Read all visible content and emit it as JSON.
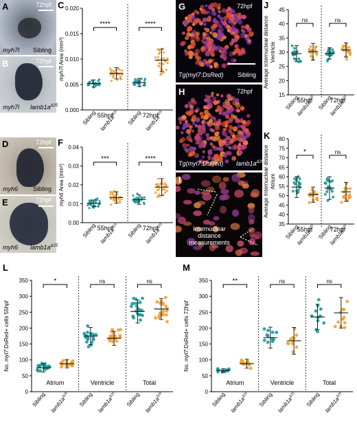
{
  "figure": {
    "panels": {
      "A": {
        "letter": "A",
        "time": "72hpf",
        "gene": "myh7l",
        "cond": "Sibling"
      },
      "B": {
        "letter": "B",
        "time": "72hpf",
        "gene": "myh7l",
        "cond": "lamb1a",
        "sup": "Δ25"
      },
      "D": {
        "letter": "D",
        "time": "72hpf",
        "gene": "myh6",
        "cond": "Sibling"
      },
      "E": {
        "letter": "E",
        "time": "72hpf",
        "gene": "myh6",
        "cond": "lamb1a",
        "sup": "Δ25"
      },
      "G": {
        "letter": "G",
        "time": "72hpf",
        "label": "Tg(myl7:DsRed)",
        "cond": "Sibling"
      },
      "H": {
        "letter": "H",
        "time": "72hpf",
        "label": "Tg(myl7:DsRed)",
        "cond": "lamb1a",
        "sup": "Δ25"
      },
      "I": {
        "letter": "I",
        "note_line1": "Internuclear",
        "note_line2": "distance",
        "note_line3": "measurements"
      }
    }
  },
  "chart_data": [
    {
      "id": "C",
      "letter": "C",
      "type": "scatter",
      "ylabel_italic": "myh7l",
      "ylabel_rest": " Area (mm²)",
      "ylim": [
        0,
        0.02
      ],
      "yticks": [
        "0.000",
        "0.005",
        "0.010",
        "0.015",
        "0.020"
      ],
      "xticks": [
        "Sibling",
        "lamb1a",
        "Sibling",
        "lamb1a"
      ],
      "xsup": "Δ25",
      "groups": [
        "55hpf",
        "72hpf"
      ],
      "series": [
        {
          "name": "Sibling 55hpf",
          "mean": 0.0052,
          "sd": 0.0007,
          "color": "#1a9a9a"
        },
        {
          "name": "lamb1a 55hpf",
          "mean": 0.0072,
          "sd": 0.0011,
          "color": "#f0a030"
        },
        {
          "name": "Sibling 72hpf",
          "mean": 0.0054,
          "sd": 0.0008,
          "color": "#1a9a9a"
        },
        {
          "name": "lamb1a 72hpf",
          "mean": 0.0098,
          "sd": 0.0022,
          "color": "#f0a030"
        }
      ],
      "sig": [
        "****",
        "****"
      ]
    },
    {
      "id": "F",
      "letter": "F",
      "type": "scatter",
      "ylabel_italic": "myh6",
      "ylabel_rest": " Area (mm²)",
      "ylim": [
        0,
        0.04
      ],
      "yticks": [
        "0.00",
        "0.01",
        "0.02",
        "0.03",
        "0.04"
      ],
      "xticks": [
        "Sibling",
        "lamb1a",
        "Sibling",
        "lamb1a"
      ],
      "xsup": "Δ25",
      "groups": [
        "55hpf",
        "72hpf"
      ],
      "series": [
        {
          "name": "Sibling 55hpf",
          "mean": 0.0102,
          "sd": 0.0018,
          "color": "#1a9a9a"
        },
        {
          "name": "lamb1a 55hpf",
          "mean": 0.0133,
          "sd": 0.003,
          "color": "#f0a030"
        },
        {
          "name": "Sibling 72hpf",
          "mean": 0.0122,
          "sd": 0.0025,
          "color": "#1a9a9a"
        },
        {
          "name": "lamb1a 72hpf",
          "mean": 0.0188,
          "sd": 0.0045,
          "color": "#f0a030"
        }
      ],
      "sig": [
        "***",
        "****"
      ]
    },
    {
      "id": "J",
      "letter": "J",
      "type": "scatter",
      "ylabel_line1": "Average Internuclear distance",
      "ylabel_line2": "Ventricle",
      "ylim": [
        15,
        45
      ],
      "yticks": [
        "15",
        "20",
        "25",
        "30",
        "35",
        "40",
        "45"
      ],
      "xticks": [
        "Sibling",
        "lamb1a",
        "Sibling",
        "lamb1a"
      ],
      "xsup": "Δ25",
      "groups": [
        "55hpf",
        "72hpf"
      ],
      "series": [
        {
          "name": "Sibling 55hpf",
          "mean": 29.5,
          "sd": 2.8,
          "color": "#1a9a9a"
        },
        {
          "name": "lamb1a 55hpf",
          "mean": 30.2,
          "sd": 2.9,
          "color": "#f0a030"
        },
        {
          "name": "Sibling 72hpf",
          "mean": 29.6,
          "sd": 2.0,
          "color": "#1a9a9a"
        },
        {
          "name": "lamb1a 72hpf",
          "mean": 30.8,
          "sd": 2.5,
          "color": "#f0a030"
        }
      ],
      "sig": [
        "ns",
        "ns"
      ]
    },
    {
      "id": "K",
      "letter": "K",
      "type": "scatter",
      "ylabel_line1": "Average Internuclear distance",
      "ylabel_line2": "Atrium",
      "ylim": [
        35,
        80
      ],
      "yticks": [
        "35",
        "40",
        "45",
        "50",
        "55",
        "60",
        "65",
        "70",
        "75",
        "80"
      ],
      "xticks": [
        "Sibling",
        "lamb1a",
        "Sibling",
        "lamb1a"
      ],
      "xsup": "Δ25",
      "groups": [
        "55hpf",
        "72hpf"
      ],
      "series": [
        {
          "name": "Sibling 55hpf",
          "mean": 54.5,
          "sd": 5.5,
          "color": "#1a9a9a"
        },
        {
          "name": "lamb1a 55hpf",
          "mean": 50.5,
          "sd": 4.0,
          "color": "#f0a030"
        },
        {
          "name": "Sibling 72hpf",
          "mean": 54.0,
          "sd": 6.0,
          "color": "#1a9a9a"
        },
        {
          "name": "lamb1a 72hpf",
          "mean": 52.0,
          "sd": 5.0,
          "color": "#f0a030"
        }
      ],
      "sig": [
        "*",
        "ns"
      ]
    },
    {
      "id": "L",
      "letter": "L",
      "type": "scatter",
      "ylabel_pre": "No. ",
      "ylabel_italic": "myl7",
      "ylabel_rest": ":DsRed+ cells 55hpf",
      "ylim": [
        0,
        350
      ],
      "yticks": [
        "0",
        "50",
        "100",
        "150",
        "200",
        "250",
        "300",
        "350"
      ],
      "xticks": [
        "Sibling",
        "lamb1a",
        "Sibling",
        "lamb1a",
        "Sibling",
        "lamb1a"
      ],
      "xsup": "Δ25",
      "groups": [
        "Atrium",
        "Ventricle",
        "Total"
      ],
      "series": [
        {
          "name": "Atrium Sibling",
          "mean": 75,
          "sd": 13,
          "color": "#1a9a9a"
        },
        {
          "name": "Atrium lamb1a",
          "mean": 88,
          "sd": 13,
          "color": "#f0a030"
        },
        {
          "name": "Ventricle Sibling",
          "mean": 175,
          "sd": 27,
          "color": "#1a9a9a"
        },
        {
          "name": "Ventricle lamb1a",
          "mean": 168,
          "sd": 22,
          "color": "#f0a030"
        },
        {
          "name": "Total Sibling",
          "mean": 252,
          "sd": 36,
          "color": "#1a9a9a"
        },
        {
          "name": "Total lamb1a",
          "mean": 260,
          "sd": 33,
          "color": "#f0a030"
        }
      ],
      "sig": [
        "*",
        "ns",
        "ns"
      ]
    },
    {
      "id": "M",
      "letter": "M",
      "type": "scatter",
      "ylabel_pre": "No. ",
      "ylabel_italic": "myl7",
      "ylabel_rest": ":DsRed+ cells 72hpf",
      "ylim": [
        0,
        350
      ],
      "yticks": [
        "0",
        "50",
        "100",
        "150",
        "200",
        "250",
        "300",
        "350"
      ],
      "xticks": [
        "Sibling",
        "lamb1a",
        "Sibling",
        "lamb1a",
        "Sibling",
        "lamb1a"
      ],
      "xsup": "Δ25",
      "groups": [
        "Atrium",
        "Ventricle",
        "Total"
      ],
      "series": [
        {
          "name": "Atrium Sibling",
          "mean": 67,
          "sd": 5,
          "color": "#1a9a9a"
        },
        {
          "name": "Atrium lamb1a",
          "mean": 88,
          "sd": 14,
          "color": "#f0a030"
        },
        {
          "name": "Ventricle Sibling",
          "mean": 170,
          "sd": 33,
          "color": "#1a9a9a"
        },
        {
          "name": "Ventricle lamb1a",
          "mean": 160,
          "sd": 42,
          "color": "#f0a030"
        },
        {
          "name": "Total Sibling",
          "mean": 235,
          "sd": 40,
          "color": "#1a9a9a"
        },
        {
          "name": "Total lamb1a",
          "mean": 248,
          "sd": 48,
          "color": "#f0a030"
        }
      ],
      "sig": [
        "**",
        "ns",
        "ns"
      ]
    }
  ]
}
